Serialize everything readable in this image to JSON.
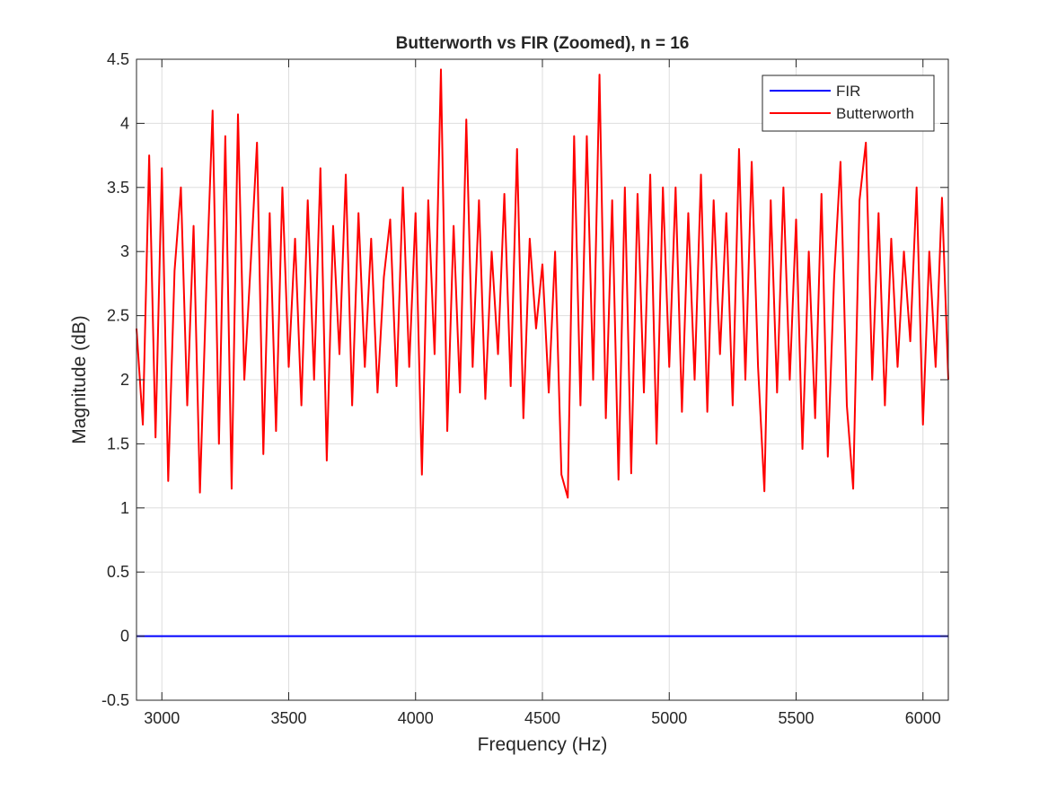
{
  "chart_data": {
    "type": "line",
    "title": "Butterworth vs FIR (Zoomed), n = 16",
    "x_label": "Frequency (Hz)",
    "y_label": "Magnitude (dB)",
    "x": [
      2900,
      2925,
      2950,
      2975,
      3000,
      3025,
      3050,
      3075,
      3100,
      3125,
      3150,
      3175,
      3200,
      3225,
      3250,
      3275,
      3300,
      3325,
      3350,
      3375,
      3400,
      3425,
      3450,
      3475,
      3500,
      3525,
      3550,
      3575,
      3600,
      3625,
      3650,
      3675,
      3700,
      3725,
      3750,
      3775,
      3800,
      3825,
      3850,
      3875,
      3900,
      3925,
      3950,
      3975,
      4000,
      4025,
      4050,
      4075,
      4100,
      4125,
      4150,
      4175,
      4200,
      4225,
      4250,
      4275,
      4300,
      4325,
      4350,
      4375,
      4400,
      4425,
      4450,
      4475,
      4500,
      4525,
      4550,
      4575,
      4600,
      4625,
      4650,
      4675,
      4700,
      4725,
      4750,
      4775,
      4800,
      4825,
      4850,
      4875,
      4900,
      4925,
      4950,
      4975,
      5000,
      5025,
      5050,
      5075,
      5100,
      5125,
      5150,
      5175,
      5200,
      5225,
      5250,
      5275,
      5300,
      5325,
      5350,
      5375,
      5400,
      5425,
      5450,
      5475,
      5500,
      5525,
      5550,
      5575,
      5600,
      5625,
      5650,
      5675,
      5700,
      5725,
      5750,
      5775,
      5800,
      5825,
      5850,
      5875,
      5900,
      5925,
      5950,
      5975,
      6000,
      6025,
      6050,
      6075,
      6100
    ],
    "series": [
      {
        "name": "FIR",
        "color": "#0000ff",
        "values": [
          0,
          0,
          0,
          0,
          0,
          0,
          0,
          0,
          0,
          0,
          0,
          0,
          0,
          0,
          0,
          0,
          0,
          0,
          0,
          0,
          0,
          0,
          0,
          0,
          0,
          0,
          0,
          0,
          0,
          0,
          0,
          0,
          0,
          0,
          0,
          0,
          0,
          0,
          0,
          0,
          0,
          0,
          0,
          0,
          0,
          0,
          0,
          0,
          0,
          0,
          0,
          0,
          0,
          0,
          0,
          0,
          0,
          0,
          0,
          0,
          0,
          0,
          0,
          0,
          0,
          0,
          0,
          0,
          0,
          0,
          0,
          0,
          0,
          0,
          0,
          0,
          0,
          0,
          0,
          0,
          0,
          0,
          0,
          0,
          0,
          0,
          0,
          0,
          0,
          0,
          0,
          0,
          0,
          0,
          0,
          0,
          0,
          0,
          0,
          0,
          0,
          0,
          0,
          0,
          0,
          0,
          0,
          0,
          0,
          0,
          0,
          0,
          0,
          0,
          0,
          0,
          0,
          0,
          0,
          0,
          0,
          0,
          0,
          0,
          0,
          0,
          0,
          0,
          0
        ]
      },
      {
        "name": "Butterworth",
        "color": "#ff0000",
        "values": [
          2.4,
          1.65,
          3.75,
          1.55,
          3.65,
          1.21,
          2.85,
          3.5,
          1.8,
          3.2,
          1.12,
          2.7,
          4.1,
          1.5,
          3.9,
          1.15,
          4.07,
          2.0,
          2.9,
          3.85,
          1.42,
          3.3,
          1.6,
          3.5,
          2.1,
          3.1,
          1.8,
          3.4,
          2.0,
          3.65,
          1.37,
          3.2,
          2.2,
          3.6,
          1.8,
          3.3,
          2.1,
          3.1,
          1.9,
          2.8,
          3.25,
          1.95,
          3.5,
          2.1,
          3.3,
          1.26,
          3.4,
          2.2,
          4.42,
          1.6,
          3.2,
          1.9,
          4.03,
          2.1,
          3.4,
          1.85,
          3.0,
          2.2,
          3.45,
          1.95,
          3.8,
          1.7,
          3.1,
          2.4,
          2.9,
          1.9,
          3.0,
          1.26,
          1.08,
          3.9,
          1.8,
          3.9,
          2.0,
          4.38,
          1.7,
          3.4,
          1.22,
          3.5,
          1.27,
          3.45,
          1.9,
          3.6,
          1.5,
          3.5,
          2.1,
          3.5,
          1.75,
          3.3,
          2.0,
          3.6,
          1.75,
          3.4,
          2.2,
          3.3,
          1.8,
          3.8,
          2.0,
          3.7,
          2.1,
          1.13,
          3.4,
          1.9,
          3.5,
          2.0,
          3.25,
          1.46,
          3.0,
          1.7,
          3.45,
          1.4,
          2.8,
          3.7,
          1.8,
          1.15,
          3.4,
          3.85,
          2.0,
          3.3,
          1.8,
          3.1,
          2.1,
          3.0,
          2.3,
          3.5,
          1.65,
          3.0,
          2.1,
          3.42,
          2.0
        ]
      }
    ],
    "xlim": [
      2900,
      6100
    ],
    "ylim": [
      -0.5,
      4.5
    ],
    "xticks": [
      3000,
      3500,
      4000,
      4500,
      5000,
      5500,
      6000
    ],
    "yticks": [
      -0.5,
      0,
      0.5,
      1,
      1.5,
      2,
      2.5,
      3,
      3.5,
      4,
      4.5
    ],
    "grid": true,
    "legend": "northeast"
  }
}
